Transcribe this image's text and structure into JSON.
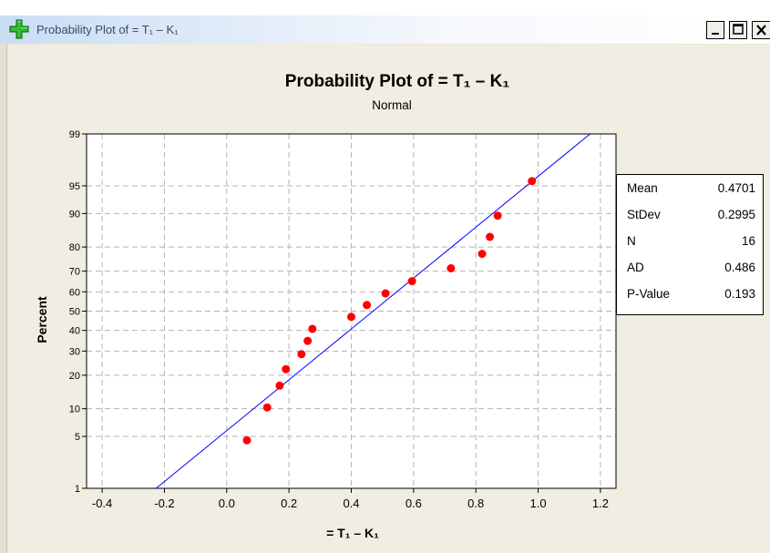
{
  "window": {
    "title": "Probability Plot of = T₁ – K₁",
    "icon": "green-plus-icon",
    "controls": [
      "_",
      "□",
      "×"
    ]
  },
  "chart_data": {
    "type": "scatter",
    "title": "Probability Plot of = T₁ – K₁",
    "subtitle": "Normal",
    "xlabel": "= T₁ – K₁",
    "ylabel": "Percent",
    "y_scale": "normal-probability",
    "xlim": [
      -0.45,
      1.25
    ],
    "ylim": [
      1,
      99
    ],
    "x_ticks": [
      "-0.4",
      "-0.2",
      "0.0",
      "0.2",
      "0.4",
      "0.6",
      "0.8",
      "1.0",
      "1.2"
    ],
    "y_ticks": [
      "1",
      "5",
      "10",
      "20",
      "30",
      "40",
      "50",
      "60",
      "70",
      "80",
      "90",
      "95",
      "99"
    ],
    "grid": true,
    "points": [
      {
        "x": 0.065,
        "y": 4.5
      },
      {
        "x": 0.13,
        "y": 10.3
      },
      {
        "x": 0.17,
        "y": 16.4
      },
      {
        "x": 0.19,
        "y": 22.3
      },
      {
        "x": 0.24,
        "y": 28.6
      },
      {
        "x": 0.26,
        "y": 34.8
      },
      {
        "x": 0.275,
        "y": 40.8
      },
      {
        "x": 0.4,
        "y": 47.0
      },
      {
        "x": 0.45,
        "y": 53.2
      },
      {
        "x": 0.51,
        "y": 59.2
      },
      {
        "x": 0.595,
        "y": 65.3
      },
      {
        "x": 0.72,
        "y": 71.3
      },
      {
        "x": 0.82,
        "y": 77.4
      },
      {
        "x": 0.845,
        "y": 83.5
      },
      {
        "x": 0.87,
        "y": 89.5
      },
      {
        "x": 0.98,
        "y": 95.6
      }
    ],
    "fit_line": {
      "mean": 0.4701,
      "stdev": 0.2995
    },
    "colors": {
      "points": "#ff0000",
      "line": "#0000ff",
      "grid": "#b4b4b4"
    },
    "legend_placement": "top-right"
  },
  "stats": [
    {
      "label": "Mean",
      "value": "0.4701"
    },
    {
      "label": "StDev",
      "value": "0.2995"
    },
    {
      "label": "N",
      "value": "16"
    },
    {
      "label": "AD",
      "value": "0.486"
    },
    {
      "label": "P-Value",
      "value": "0.193"
    }
  ]
}
